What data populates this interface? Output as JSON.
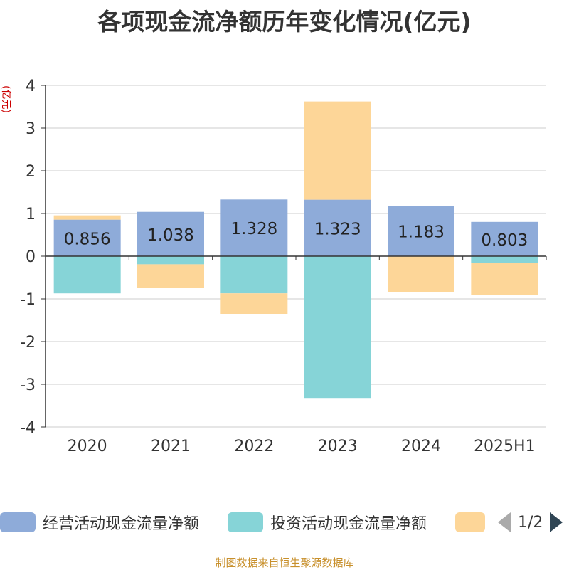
{
  "chart_data": {
    "type": "bar",
    "stacked": true,
    "title": "各项现金流净额历年变化情况(亿元)",
    "ylabel": "(亿元)",
    "categories": [
      "2020",
      "2021",
      "2022",
      "2023",
      "2024",
      "2025H1"
    ],
    "ylim": [
      -4,
      4
    ],
    "yticks": [
      -4,
      -3,
      -2,
      -1,
      0,
      1,
      2,
      3,
      4
    ],
    "grid": true,
    "series": [
      {
        "name": "经营活动现金流量净额",
        "color": "#8eabd9",
        "values": [
          0.856,
          1.038,
          1.328,
          1.323,
          1.183,
          0.803
        ],
        "labels": [
          "0.856",
          "1.038",
          "1.328",
          "1.323",
          "1.183",
          "0.803"
        ]
      },
      {
        "name": "投资活动现金流量净额",
        "color": "#86d4d7",
        "values": [
          -0.87,
          -0.19,
          -0.87,
          -3.32,
          0,
          -0.16
        ]
      },
      {
        "name": "",
        "color": "#fdd698",
        "values": [
          0.1,
          -0.56,
          -0.48,
          2.3,
          -0.85,
          -0.74
        ]
      }
    ],
    "legend_position": "bottom"
  },
  "legend": {
    "pager_text": "1/2"
  },
  "source_note": "制图数据来自恒生聚源数据库"
}
